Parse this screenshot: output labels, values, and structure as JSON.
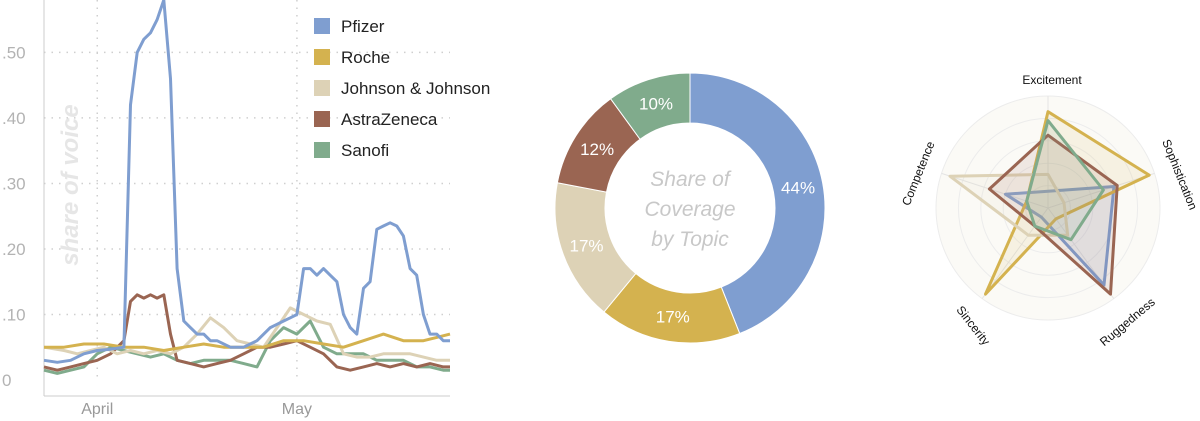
{
  "colors": {
    "Pfizer": "#7f9ed0",
    "Roche": "#d4b24f",
    "Johnson & Johnson": "#ddd2b6",
    "AstraZeneca": "#9a6552",
    "Sanofi": "#80ab8c"
  },
  "chart_data": [
    {
      "type": "line",
      "title": "",
      "ylabel": "share of voice",
      "xlabel": "",
      "x_tick_labels": [
        "April",
        "May"
      ],
      "y_tick_labels": [
        "0",
        ".10",
        ".20",
        ".30",
        ".40",
        ".50"
      ],
      "y_ticks": [
        0,
        0.1,
        0.2,
        0.3,
        0.4,
        0.5
      ],
      "ylim": [
        0,
        0.58
      ],
      "x_range_days": [
        0,
        61
      ],
      "x_tick_positions_days": [
        8,
        38
      ],
      "legend_position": "top-right",
      "grid": "dotted",
      "series": [
        {
          "name": "Pfizer",
          "x": [
            0,
            2,
            4,
            6,
            8,
            10,
            12,
            13,
            14,
            15,
            16,
            17,
            18,
            19,
            20,
            21,
            22,
            23,
            24,
            25,
            26,
            28,
            30,
            32,
            34,
            35,
            36,
            37,
            38,
            39,
            40,
            41,
            42,
            43,
            44,
            45,
            46,
            47,
            48,
            49,
            50,
            51,
            52,
            53,
            54,
            55,
            56,
            57,
            58,
            59,
            60,
            61
          ],
          "values": [
            0.03,
            0.027,
            0.03,
            0.04,
            0.045,
            0.047,
            0.05,
            0.42,
            0.5,
            0.52,
            0.53,
            0.55,
            0.58,
            0.46,
            0.17,
            0.09,
            0.08,
            0.07,
            0.07,
            0.06,
            0.06,
            0.05,
            0.05,
            0.06,
            0.08,
            0.085,
            0.09,
            0.095,
            0.1,
            0.17,
            0.17,
            0.16,
            0.17,
            0.16,
            0.15,
            0.1,
            0.08,
            0.07,
            0.14,
            0.15,
            0.23,
            0.235,
            0.24,
            0.235,
            0.22,
            0.17,
            0.16,
            0.1,
            0.07,
            0.07,
            0.06,
            0.06
          ]
        },
        {
          "name": "Roche",
          "x": [
            0,
            3,
            6,
            9,
            12,
            15,
            18,
            21,
            24,
            27,
            30,
            33,
            36,
            39,
            42,
            45,
            48,
            51,
            54,
            57,
            59,
            61
          ],
          "values": [
            0.05,
            0.05,
            0.055,
            0.055,
            0.05,
            0.05,
            0.045,
            0.05,
            0.055,
            0.05,
            0.05,
            0.05,
            0.06,
            0.06,
            0.055,
            0.05,
            0.06,
            0.07,
            0.06,
            0.06,
            0.065,
            0.07
          ]
        },
        {
          "name": "Johnson & Johnson",
          "x": [
            0,
            3,
            5,
            7,
            9,
            11,
            13,
            15,
            17,
            19,
            21,
            23,
            25,
            27,
            29,
            31,
            33,
            35,
            37,
            39,
            41,
            43,
            45,
            47,
            49,
            51,
            53,
            55,
            57,
            59,
            61
          ],
          "values": [
            0.05,
            0.045,
            0.04,
            0.045,
            0.05,
            0.04,
            0.045,
            0.04,
            0.045,
            0.04,
            0.05,
            0.07,
            0.095,
            0.08,
            0.06,
            0.055,
            0.05,
            0.08,
            0.11,
            0.1,
            0.09,
            0.085,
            0.04,
            0.035,
            0.035,
            0.04,
            0.04,
            0.04,
            0.035,
            0.03,
            0.03
          ]
        },
        {
          "name": "AstraZeneca",
          "x": [
            0,
            2,
            4,
            6,
            8,
            10,
            12,
            13,
            14,
            15,
            16,
            17,
            18,
            19,
            20,
            22,
            24,
            26,
            28,
            30,
            32,
            34,
            36,
            38,
            40,
            42,
            44,
            46,
            48,
            50,
            52,
            54,
            56,
            58,
            60,
            61
          ],
          "values": [
            0.02,
            0.015,
            0.02,
            0.025,
            0.03,
            0.04,
            0.06,
            0.12,
            0.13,
            0.125,
            0.13,
            0.125,
            0.13,
            0.07,
            0.03,
            0.025,
            0.02,
            0.025,
            0.03,
            0.04,
            0.05,
            0.05,
            0.055,
            0.06,
            0.05,
            0.04,
            0.02,
            0.015,
            0.02,
            0.025,
            0.02,
            0.025,
            0.02,
            0.025,
            0.02,
            0.02
          ]
        },
        {
          "name": "Sanofi",
          "x": [
            0,
            2,
            4,
            6,
            8,
            10,
            12,
            14,
            16,
            18,
            20,
            22,
            24,
            26,
            28,
            30,
            32,
            34,
            36,
            38,
            40,
            42,
            44,
            46,
            48,
            50,
            52,
            54,
            56,
            58,
            60,
            61
          ],
          "values": [
            0.015,
            0.01,
            0.015,
            0.02,
            0.04,
            0.05,
            0.045,
            0.04,
            0.035,
            0.04,
            0.03,
            0.025,
            0.03,
            0.03,
            0.03,
            0.025,
            0.02,
            0.06,
            0.08,
            0.07,
            0.09,
            0.05,
            0.04,
            0.04,
            0.04,
            0.03,
            0.03,
            0.03,
            0.02,
            0.02,
            0.015,
            0.015
          ]
        }
      ]
    },
    {
      "type": "pie",
      "title": "Share of Coverage by Topic",
      "title_lines": [
        "Share of",
        "Coverage",
        "by Topic"
      ],
      "labels": [
        "Pfizer",
        "Roche",
        "Johnson & Johnson",
        "AstraZeneca",
        "Sanofi"
      ],
      "values": [
        44,
        17,
        17,
        12,
        10
      ],
      "value_labels": [
        "44%",
        "17%",
        "17%",
        "12%",
        "10%"
      ]
    },
    {
      "type": "radar",
      "axes": [
        "Excitement",
        "Sophistication",
        "Ruggedness",
        "Sincerity",
        "Competence"
      ],
      "rmax": 1.0,
      "series": [
        {
          "name": "Pfizer",
          "values": [
            0.15,
            0.62,
            0.85,
            0.1,
            0.4
          ]
        },
        {
          "name": "Roche",
          "values": [
            0.86,
            0.95,
            0.12,
            0.95,
            0.2
          ]
        },
        {
          "name": "Johnson & Johnson",
          "values": [
            0.3,
            0.15,
            0.3,
            0.3,
            0.92
          ]
        },
        {
          "name": "AstraZeneca",
          "values": [
            0.65,
            0.65,
            0.95,
            0.2,
            0.55
          ]
        },
        {
          "name": "Sanofi",
          "values": [
            0.78,
            0.52,
            0.35,
            0.2,
            0.2
          ]
        }
      ]
    }
  ]
}
